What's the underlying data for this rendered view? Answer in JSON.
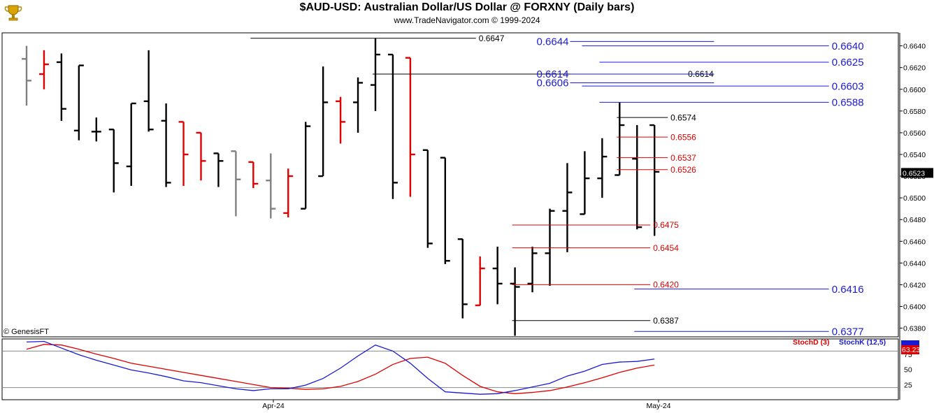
{
  "header": {
    "title": "$AUD-USD:  Australian Dollar/US Dollar @ FORXNY  (Daily bars)",
    "subtitle": "www.TradeNavigator.com © 1999-2024"
  },
  "watermark": "© GenesisFT",
  "logo_icon": "trophy-icon",
  "colors": {
    "up": "#000000",
    "down": "#e00000",
    "neutral": "#808080",
    "blue": "#1a1ad6",
    "stochD": "#e00000",
    "stochK": "#1a1ad6"
  },
  "chart_data": [
    {
      "type": "ohlc",
      "title": "$AUD-USD:  Australian Dollar/US Dollar @ FORXNY  (Daily bars)",
      "ylim": [
        0.6372,
        0.6652
      ],
      "y_ticks": [
        "0.6640",
        "0.6620",
        "0.6600",
        "0.6580",
        "0.6560",
        "0.6540",
        "0.6520",
        "0.6500",
        "0.6480",
        "0.6460",
        "0.6440",
        "0.6420",
        "0.6400",
        "0.6380"
      ],
      "x_ticks": [
        "Apr-24",
        "May-24"
      ],
      "last_price": "0.6523",
      "bars": [
        {
          "o": 0.6628,
          "h": 0.664,
          "l": 0.6585,
          "c": 0.6608,
          "color": "gray"
        },
        {
          "o": 0.6614,
          "h": 0.6636,
          "l": 0.66,
          "c": 0.6623,
          "color": "red"
        },
        {
          "o": 0.6625,
          "h": 0.6633,
          "l": 0.6571,
          "c": 0.6582,
          "color": "black"
        },
        {
          "o": 0.6562,
          "h": 0.6622,
          "l": 0.6553,
          "c": 0.6622,
          "color": "black"
        },
        {
          "o": 0.6561,
          "h": 0.6574,
          "l": 0.6552,
          "c": 0.6561,
          "color": "black"
        },
        {
          "o": 0.6563,
          "h": 0.6563,
          "l": 0.6505,
          "c": 0.6532,
          "color": "black"
        },
        {
          "o": 0.6529,
          "h": 0.6587,
          "l": 0.6511,
          "c": 0.6587,
          "color": "black"
        },
        {
          "o": 0.6589,
          "h": 0.6636,
          "l": 0.6561,
          "c": 0.6563,
          "color": "black"
        },
        {
          "o": 0.6571,
          "h": 0.6587,
          "l": 0.651,
          "c": 0.6514,
          "color": "black"
        },
        {
          "o": 0.657,
          "h": 0.657,
          "l": 0.6511,
          "c": 0.654,
          "color": "red"
        },
        {
          "o": 0.656,
          "h": 0.656,
          "l": 0.6516,
          "c": 0.6534,
          "color": "red"
        },
        {
          "o": 0.6541,
          "h": 0.6541,
          "l": 0.651,
          "c": 0.6534,
          "color": "black"
        },
        {
          "o": 0.6543,
          "h": 0.6543,
          "l": 0.6483,
          "c": 0.6517,
          "color": "gray"
        },
        {
          "o": 0.6533,
          "h": 0.6533,
          "l": 0.6509,
          "c": 0.6513,
          "color": "red"
        },
        {
          "o": 0.6516,
          "h": 0.6541,
          "l": 0.6481,
          "c": 0.649,
          "color": "gray"
        },
        {
          "o": 0.6486,
          "h": 0.6527,
          "l": 0.6482,
          "c": 0.652,
          "color": "red"
        },
        {
          "o": 0.649,
          "h": 0.657,
          "l": 0.649,
          "c": 0.6566,
          "color": "black"
        },
        {
          "o": 0.652,
          "h": 0.6621,
          "l": 0.652,
          "c": 0.6588,
          "color": "black"
        },
        {
          "o": 0.6589,
          "h": 0.6593,
          "l": 0.655,
          "c": 0.657,
          "color": "red"
        },
        {
          "o": 0.6588,
          "h": 0.6611,
          "l": 0.656,
          "c": 0.6606,
          "color": "black"
        },
        {
          "o": 0.6604,
          "h": 0.6647,
          "l": 0.658,
          "c": 0.6632,
          "color": "black"
        },
        {
          "o": 0.6632,
          "h": 0.6632,
          "l": 0.6499,
          "c": 0.6514,
          "color": "black"
        },
        {
          "o": 0.6629,
          "h": 0.6629,
          "l": 0.6501,
          "c": 0.654,
          "color": "red"
        },
        {
          "o": 0.6544,
          "h": 0.6544,
          "l": 0.6454,
          "c": 0.6458,
          "color": "black"
        },
        {
          "o": 0.6537,
          "h": 0.6537,
          "l": 0.6439,
          "c": 0.6442,
          "color": "black"
        },
        {
          "o": 0.6462,
          "h": 0.6462,
          "l": 0.6389,
          "c": 0.6402,
          "color": "black"
        },
        {
          "o": 0.6401,
          "h": 0.6446,
          "l": 0.6401,
          "c": 0.6435,
          "color": "red"
        },
        {
          "o": 0.6435,
          "h": 0.6455,
          "l": 0.6402,
          "c": 0.6421,
          "color": "black"
        },
        {
          "o": 0.6421,
          "h": 0.6436,
          "l": 0.6373,
          "c": 0.6418,
          "color": "black"
        },
        {
          "o": 0.6421,
          "h": 0.6455,
          "l": 0.6413,
          "c": 0.6449,
          "color": "black"
        },
        {
          "o": 0.6449,
          "h": 0.649,
          "l": 0.6419,
          "c": 0.6488,
          "color": "black"
        },
        {
          "o": 0.6488,
          "h": 0.6532,
          "l": 0.645,
          "c": 0.6505,
          "color": "black"
        },
        {
          "o": 0.6485,
          "h": 0.6543,
          "l": 0.6485,
          "c": 0.6518,
          "color": "black"
        },
        {
          "o": 0.6518,
          "h": 0.6555,
          "l": 0.65,
          "c": 0.6538,
          "color": "black"
        },
        {
          "o": 0.6521,
          "h": 0.6588,
          "l": 0.6521,
          "c": 0.6567,
          "color": "black"
        },
        {
          "o": 0.6536,
          "h": 0.6567,
          "l": 0.6471,
          "c": 0.6473,
          "color": "black"
        },
        {
          "o": 0.6567,
          "h": 0.6567,
          "l": 0.6465,
          "c": 0.6524,
          "color": "black"
        }
      ],
      "levels": [
        {
          "value": 0.6647,
          "label": "0.6647",
          "color": "black",
          "from_bar": 13,
          "label_bar": 26,
          "label_side": "right"
        },
        {
          "value": 0.6644,
          "label": "0.6644",
          "color": "blue",
          "from_bar": 31,
          "label_bar": 31,
          "label_side": "left"
        },
        {
          "value": 0.664,
          "label": "0.6640",
          "color": "blue",
          "from_bar": 32,
          "label_bar": 46,
          "label_side": "right"
        },
        {
          "value": 0.6625,
          "label": "0.6625",
          "color": "blue",
          "from_bar": 33,
          "label_bar": 46,
          "label_side": "right"
        },
        {
          "value": 0.6614,
          "label": "0.6614",
          "color": "black",
          "from_bar": 20,
          "label_bar": 38,
          "label_side": "right"
        },
        {
          "value": 0.6614,
          "label": "0.6614",
          "color": "blue",
          "from_bar": 31,
          "label_bar": 31,
          "label_side": "left"
        },
        {
          "value": 0.6606,
          "label": "0.6606",
          "color": "blue",
          "from_bar": 31,
          "label_bar": 31,
          "label_side": "left"
        },
        {
          "value": 0.6603,
          "label": "0.6603",
          "color": "blue",
          "from_bar": 32,
          "label_bar": 46,
          "label_side": "right"
        },
        {
          "value": 0.6588,
          "label": "0.6588",
          "color": "blue",
          "from_bar": 33,
          "label_bar": 46,
          "label_side": "right"
        },
        {
          "value": 0.6574,
          "label": "0.6574",
          "color": "black",
          "from_bar": 34,
          "label_bar": 37,
          "label_side": "right"
        },
        {
          "value": 0.6556,
          "label": "0.6556",
          "color": "red",
          "from_bar": 34,
          "label_bar": 37,
          "label_side": "right"
        },
        {
          "value": 0.6537,
          "label": "0.6537",
          "color": "red",
          "from_bar": 34,
          "label_bar": 37,
          "label_side": "right"
        },
        {
          "value": 0.6526,
          "label": "0.6526",
          "color": "red",
          "from_bar": 34,
          "label_bar": 37,
          "label_side": "right"
        },
        {
          "value": 0.6475,
          "label": "0.6475",
          "color": "red",
          "from_bar": 28,
          "label_bar": 36,
          "label_side": "right"
        },
        {
          "value": 0.6454,
          "label": "0.6454",
          "color": "red",
          "from_bar": 28,
          "label_bar": 36,
          "label_side": "right"
        },
        {
          "value": 0.642,
          "label": "0.6420",
          "color": "red",
          "from_bar": 28,
          "label_bar": 36,
          "label_side": "right"
        },
        {
          "value": 0.6416,
          "label": "0.6416",
          "color": "blue",
          "from_bar": 35,
          "label_bar": 46,
          "label_side": "right"
        },
        {
          "value": 0.6387,
          "label": "0.6387",
          "color": "black",
          "from_bar": 28,
          "label_bar": 36,
          "label_side": "right"
        },
        {
          "value": 0.6377,
          "label": "0.6377",
          "color": "blue",
          "from_bar": 35,
          "label_bar": 46,
          "label_side": "right"
        }
      ]
    },
    {
      "type": "line",
      "ylim": [
        0,
        100
      ],
      "y_ticks": [
        "75",
        "50",
        "25"
      ],
      "hlines": [
        80,
        20
      ],
      "readouts": [
        "63.23"
      ],
      "series": [
        {
          "name": "StochD (3)",
          "color": "red",
          "values": [
            83,
            91,
            90,
            83,
            75,
            68,
            60,
            55,
            50,
            45,
            40,
            35,
            30,
            25,
            20,
            19,
            17,
            18,
            22,
            30,
            42,
            58,
            68,
            70,
            60,
            40,
            22,
            13,
            10,
            12,
            15,
            21,
            28,
            36,
            45,
            52,
            57
          ]
        },
        {
          "name": "StochK (12,5)",
          "color": "blue",
          "values": [
            95,
            96,
            85,
            74,
            65,
            57,
            49,
            44,
            38,
            31,
            28,
            23,
            18,
            15,
            18,
            18,
            24,
            35,
            52,
            72,
            90,
            80,
            60,
            35,
            13,
            11,
            9,
            10,
            15,
            21,
            27,
            39,
            47,
            58,
            62,
            63,
            67
          ]
        }
      ]
    }
  ]
}
